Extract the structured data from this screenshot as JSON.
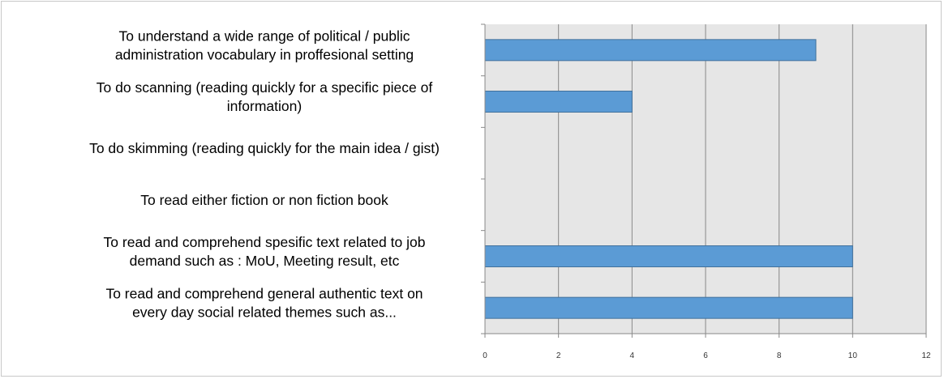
{
  "chart_data": {
    "type": "bar",
    "orientation": "horizontal",
    "categories": [
      [
        "To understand a wide range of political / public",
        "administration vocabulary in proffesional setting"
      ],
      [
        "To do scanning (reading quickly for a specific piece of",
        "information)"
      ],
      [
        "To do skimming (reading quickly for the main idea / gist)"
      ],
      [
        "To read either fiction or non fiction book"
      ],
      [
        "To read and comprehend spesific text related to job",
        "demand such as : MoU, Meeting result, etc"
      ],
      [
        "To read and comprehend general authentic text on",
        "every day social related themes such as..."
      ]
    ],
    "values": [
      9,
      4,
      0,
      0,
      10,
      10
    ],
    "xlim": [
      0,
      12
    ],
    "xticks": [
      "0",
      "2",
      "4",
      "6",
      "8",
      "10",
      "12"
    ],
    "title": "",
    "xlabel": "",
    "ylabel": "",
    "grid": "vertical",
    "legend": "none",
    "colors": {
      "bar_fill": "#5b9bd5",
      "bar_stroke": "#41719c",
      "plot_bg": "#e6e6e6",
      "grid": "#888888",
      "axis": "#888888"
    }
  }
}
